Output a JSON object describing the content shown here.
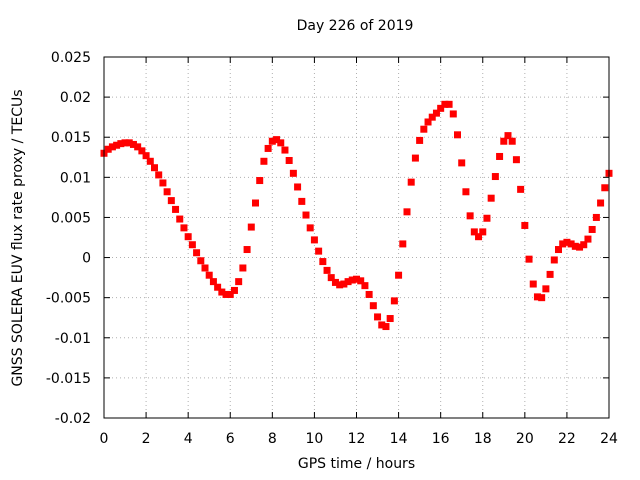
{
  "chart_data": {
    "type": "scatter",
    "title": "Day 226 of 2019",
    "xlabel": "GPS time / hours",
    "ylabel": "GNSS SOLERA EUV flux rate proxy / TECUs",
    "xlim": [
      0,
      24
    ],
    "ylim": [
      -0.02,
      0.025
    ],
    "xticks": [
      "0",
      "2",
      "4",
      "6",
      "8",
      "10",
      "12",
      "14",
      "16",
      "18",
      "20",
      "22",
      "24"
    ],
    "yticks": [
      "0.025",
      "0.02",
      "0.015",
      "0.01",
      "0.005",
      "0",
      "-0.005",
      "-0.01",
      "-0.015",
      "-0.02"
    ],
    "grid": true,
    "marker": "square",
    "marker_color": "#ff0000",
    "series": [
      {
        "x": [
          0.0,
          0.2,
          0.4,
          0.6,
          0.8,
          1.0,
          1.2,
          1.4,
          1.6,
          1.8,
          2.0,
          2.2,
          2.4,
          2.6,
          2.8,
          3.0,
          3.2,
          3.4,
          3.6,
          3.8,
          4.0,
          4.2,
          4.4,
          4.6,
          4.8,
          5.0,
          5.2,
          5.4,
          5.6,
          5.8,
          6.0,
          6.2,
          6.4,
          6.6,
          6.8,
          7.0,
          7.2,
          7.4,
          7.6,
          7.8,
          8.0,
          8.2,
          8.4,
          8.6,
          8.8,
          9.0,
          9.2,
          9.4,
          9.6,
          9.8,
          10.0,
          10.2,
          10.4,
          10.6,
          10.8,
          11.0,
          11.2,
          11.4,
          11.6,
          11.8,
          12.0,
          12.2,
          12.4,
          12.6,
          12.8,
          13.0,
          13.2,
          13.4,
          13.6,
          13.8,
          14.0,
          14.2,
          14.4,
          14.6,
          14.8,
          15.0,
          15.2,
          15.4,
          15.6,
          15.8,
          16.0,
          16.2,
          16.4,
          16.6,
          16.8,
          17.0,
          17.2,
          17.4,
          17.6,
          17.8,
          18.0,
          18.2,
          18.4,
          18.6,
          18.8,
          19.0,
          19.2,
          19.4,
          19.6,
          19.8,
          20.0,
          20.2,
          20.4,
          20.6,
          20.8,
          21.0,
          21.2,
          21.4,
          21.6,
          21.8,
          22.0,
          22.2,
          22.4,
          22.6,
          22.8,
          23.0,
          23.2,
          23.4,
          23.6,
          23.8,
          24.0
        ],
        "y": [
          0.013,
          0.0135,
          0.0138,
          0.014,
          0.0142,
          0.0143,
          0.0143,
          0.0141,
          0.0138,
          0.0133,
          0.0127,
          0.012,
          0.0112,
          0.0103,
          0.0093,
          0.0082,
          0.0071,
          0.006,
          0.0048,
          0.0037,
          0.0026,
          0.0016,
          0.0006,
          -0.0004,
          -0.0013,
          -0.0022,
          -0.003,
          -0.0037,
          -0.0043,
          -0.0046,
          -0.0046,
          -0.0041,
          -0.003,
          -0.0013,
          0.001,
          0.0038,
          0.0068,
          0.0096,
          0.012,
          0.0136,
          0.0145,
          0.0147,
          0.0143,
          0.0134,
          0.0121,
          0.0105,
          0.0088,
          0.007,
          0.0053,
          0.0037,
          0.0022,
          0.0008,
          -0.0005,
          -0.0016,
          -0.0025,
          -0.0031,
          -0.0034,
          -0.0033,
          -0.003,
          -0.0028,
          -0.0027,
          -0.0029,
          -0.0035,
          -0.0046,
          -0.006,
          -0.0074,
          -0.0084,
          -0.0086,
          -0.0076,
          -0.0054,
          -0.0022,
          0.0017,
          0.0057,
          0.0094,
          0.0124,
          0.0146,
          0.016,
          0.0169,
          0.0175,
          0.018,
          0.0186,
          0.0191,
          0.0191,
          0.0179,
          0.0153,
          0.0118,
          0.0082,
          0.0052,
          0.0032,
          0.0026,
          0.0032,
          0.0049,
          0.0074,
          0.0101,
          0.0126,
          0.0145,
          0.0152,
          0.0145,
          0.0122,
          0.0085,
          0.004,
          -0.0002,
          -0.0033,
          -0.0049,
          -0.005,
          -0.0039,
          -0.0021,
          -0.0003,
          0.001,
          0.0017,
          0.0019,
          0.0017,
          0.0014,
          0.0013,
          0.0016,
          0.0023,
          0.0035,
          0.005,
          0.0068,
          0.0087,
          0.0105
        ]
      }
    ]
  }
}
